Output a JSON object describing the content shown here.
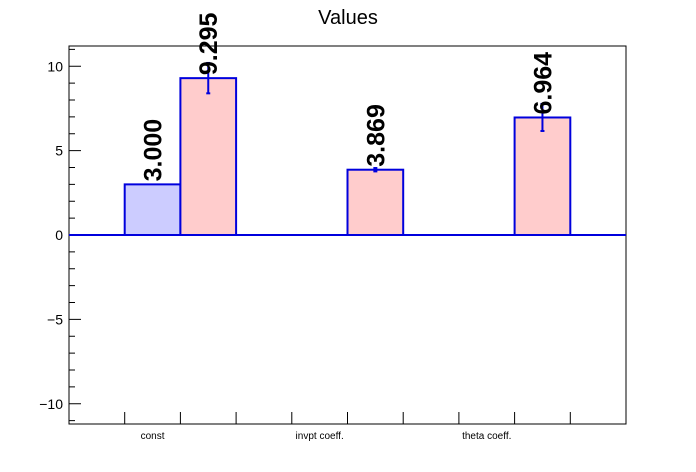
{
  "chart_data": {
    "type": "bar",
    "title": "Values",
    "xlabel": "",
    "ylabel": "",
    "ylim": [
      -11.2,
      11.2
    ],
    "yticks": [
      -10,
      -5,
      0,
      5,
      10
    ],
    "ytick_labels": [
      "−10",
      "−5",
      "0",
      "5",
      "10"
    ],
    "categories": [
      "const",
      "invpt coeff.",
      "theta coeff."
    ],
    "series": [
      {
        "color": "#ccccff",
        "edge_color": "#0000dd",
        "values": [
          3.0,
          null,
          null
        ],
        "errors": [
          0,
          null,
          null
        ],
        "labels": [
          "3.000",
          "",
          ""
        ]
      },
      {
        "color": "#ffcccc",
        "edge_color": "#0000dd",
        "values": [
          9.295,
          3.869,
          6.964
        ],
        "errors": [
          0.9,
          0.1,
          0.8
        ],
        "labels": [
          "9.295",
          "3.869",
          "6.964"
        ]
      }
    ],
    "grid": false,
    "legend": "none"
  }
}
